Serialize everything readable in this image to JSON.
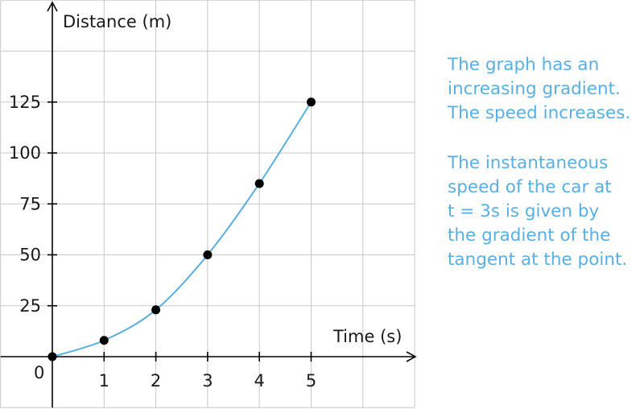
{
  "chart_data": {
    "type": "line",
    "xlabel": "Time (s)",
    "ylabel": "Distance (m)",
    "origin_label": "0",
    "xlim": [
      0,
      7
    ],
    "ylim": [
      -25,
      175
    ],
    "x_ticks": [
      1,
      2,
      3,
      4,
      5
    ],
    "y_ticks": [
      25,
      50,
      75,
      100,
      125
    ],
    "grid": true,
    "series": [
      {
        "x": [
          0,
          1,
          2,
          3,
          4,
          5
        ],
        "y": [
          0,
          8,
          23,
          50,
          85,
          125
        ],
        "line_color": "#5aaee0",
        "marker_color": "#000000"
      }
    ]
  },
  "annotations": {
    "color": "#5aaee0",
    "note1": "The graph has an\nincreasing gradient.\nThe speed increases.",
    "note2": "The instantaneous\nspeed of the car at\nt = 3s is given by\nthe gradient of the\ntangent at the point."
  }
}
